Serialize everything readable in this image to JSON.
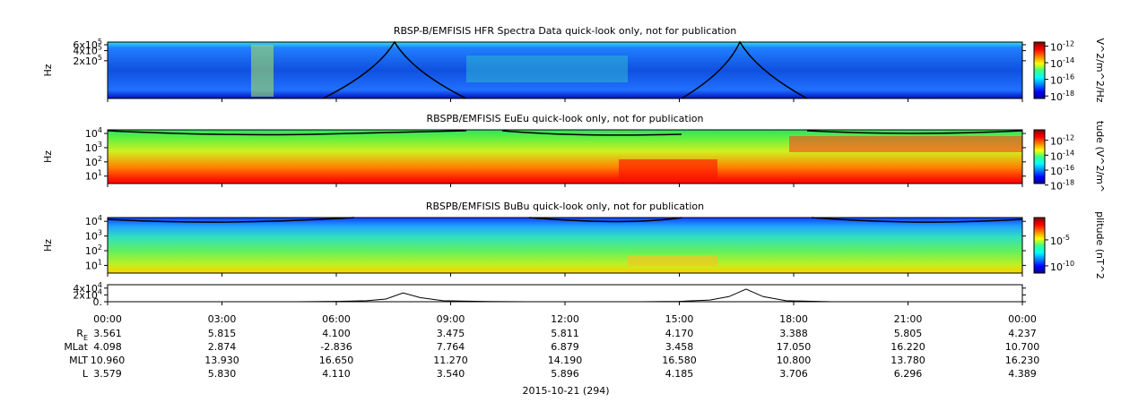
{
  "chart_data": {
    "type": "stack",
    "xlim": [
      0,
      24
    ],
    "xticks": [
      {
        "value": 0,
        "label": "00:00"
      },
      {
        "value": 3,
        "label": "03:00"
      },
      {
        "value": 6,
        "label": "06:00"
      },
      {
        "value": 9,
        "label": "09:00"
      },
      {
        "value": 12,
        "label": "12:00"
      },
      {
        "value": 15,
        "label": "15:00"
      },
      {
        "value": 18,
        "label": "18:00"
      },
      {
        "value": 21,
        "label": "21:00"
      },
      {
        "value": 24,
        "label": "00:00"
      }
    ],
    "xlabel": "2015-10-21 (294)",
    "panels": [
      {
        "type": "spectrogram",
        "title": "RBSP-B/EMFISIS  HFR Spectra Data quick-look only, not for publication",
        "ylabel": "Hz",
        "ylog": true,
        "ylim": [
          15000,
          720000
        ],
        "yticks": [
          {
            "value": 200000,
            "label": "2x10",
            "sup": "5"
          },
          {
            "value": 400000,
            "label": "4x10",
            "sup": "5"
          },
          {
            "value": 600000,
            "label": "6x10",
            "sup": "5"
          }
        ],
        "zlim": [
          5e-19,
          3e-12
        ],
        "zlabel": "V^2/m^2/Hz",
        "zticks": [
          {
            "value": 1e-12,
            "label": "10",
            "sup": "-12"
          },
          {
            "value": 1e-14,
            "label": "10",
            "sup": "-14"
          },
          {
            "value": 1e-16,
            "label": "10",
            "sup": "-16"
          },
          {
            "value": 1e-18,
            "label": "10",
            "sup": "-18"
          }
        ]
      },
      {
        "type": "spectrogram",
        "title": "RBSPB/EMFISIS  EuEu quick-look only, not for publication",
        "ylabel": "Hz",
        "ylog": true,
        "ylim": [
          3,
          18000
        ],
        "yticks": [
          {
            "value": 10,
            "label": "10",
            "sup": "1"
          },
          {
            "value": 100,
            "label": "10",
            "sup": "2"
          },
          {
            "value": 1000,
            "label": "10",
            "sup": "3"
          },
          {
            "value": 10000,
            "label": "10",
            "sup": "4"
          }
        ],
        "zlim": [
          1.6e-18,
          2.5e-11
        ],
        "zlabel": "tude (V^2/m^",
        "zticks": [
          {
            "value": 1e-12,
            "label": "10",
            "sup": "-12"
          },
          {
            "value": 1e-14,
            "label": "10",
            "sup": "-14"
          },
          {
            "value": 1e-16,
            "label": "10",
            "sup": "-16"
          },
          {
            "value": 1e-18,
            "label": "10",
            "sup": "-18"
          }
        ]
      },
      {
        "type": "spectrogram",
        "title": "RBSPB/EMFISIS  BuBu quick-look only, not for publication",
        "ylabel": "Hz",
        "ylog": true,
        "ylim": [
          3,
          18000
        ],
        "yticks": [
          {
            "value": 10,
            "label": "10",
            "sup": "1"
          },
          {
            "value": 100,
            "label": "10",
            "sup": "2"
          },
          {
            "value": 1000,
            "label": "10",
            "sup": "3"
          },
          {
            "value": 10000,
            "label": "10",
            "sup": "4"
          }
        ],
        "zlim": [
          4e-12,
          0.2
        ],
        "zlabel": "plitude (nT^2",
        "zticks": [
          {
            "value": 1e-05,
            "label": "10",
            "sup": "-5"
          },
          {
            "value": 1e-10,
            "label": "10",
            "sup": "-10"
          }
        ]
      },
      {
        "type": "line",
        "color": "#000000",
        "ylim": [
          0,
          50000
        ],
        "yticks": [
          {
            "value": 0,
            "label": "0."
          },
          {
            "value": 20000,
            "label": "2x10",
            "sup": "4"
          },
          {
            "value": 40000,
            "label": "4x10",
            "sup": "4"
          }
        ],
        "x": [
          0,
          5,
          6,
          6.8,
          7.3,
          7.75,
          8.2,
          8.8,
          10,
          11,
          14,
          15,
          15.8,
          16.3,
          16.75,
          17.2,
          17.8,
          19,
          24
        ],
        "values": [
          0,
          0,
          1000,
          3000,
          8000,
          26000,
          12000,
          3000,
          500,
          0,
          0,
          1000,
          5000,
          15000,
          37000,
          15000,
          3000,
          0,
          0
        ]
      }
    ],
    "ephemeris": [
      {
        "label": "R",
        "sub": "E",
        "values": [
          "3.561",
          "5.815",
          "4.100",
          "3.475",
          "5.811",
          "4.170",
          "3.388",
          "5.805",
          "4.237"
        ]
      },
      {
        "label": "MLat",
        "values": [
          "4.098",
          "2.874",
          "-2.836",
          "7.764",
          "6.879",
          "3.458",
          "17.050",
          "16.220",
          "10.700"
        ]
      },
      {
        "label": "MLT",
        "values": [
          "10.960",
          "13.930",
          "16.650",
          "11.270",
          "14.190",
          "16.580",
          "10.800",
          "13.780",
          "16.230"
        ]
      },
      {
        "label": "L",
        "values": [
          "3.579",
          "5.830",
          "4.110",
          "3.540",
          "5.896",
          "4.185",
          "3.706",
          "6.296",
          "4.389"
        ]
      }
    ]
  }
}
